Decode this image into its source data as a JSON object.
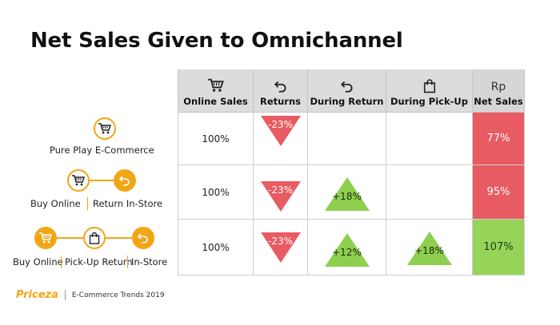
{
  "title": "Net Sales Given to Omnichannel",
  "table": {
    "headers": {
      "online_sales": "Online Sales",
      "returns": "Returns",
      "during_return": "During Return",
      "during_pickup": "During Pick-Up",
      "net_sales_symbol": "Rp",
      "net_sales": "Net Sales"
    },
    "rows": [
      {
        "online_sales": "100%",
        "returns": "-23%",
        "during_return": "",
        "during_pickup": "",
        "net_sales": "77%"
      },
      {
        "online_sales": "100%",
        "returns": "-23%",
        "during_return": "+18%",
        "during_pickup": "",
        "net_sales": "95%"
      },
      {
        "online_sales": "100%",
        "returns": "-23%",
        "during_return": "+12%",
        "during_pickup": "+18%",
        "net_sales": "107%"
      }
    ]
  },
  "channels": {
    "pure_play": "Pure Play E-Commerce",
    "row2_buy": "Buy Online",
    "row2_return": "Return In-Store",
    "row3_buy": "Buy Online",
    "row3_pickup": "Pick-Up Return",
    "row3_instore": "In-Store"
  },
  "footer": {
    "brand": "Priceza",
    "text": "E-Commerce Trends 2019"
  },
  "colors": {
    "accent": "#f2a516",
    "negative": "#e85b62",
    "positive": "#8fcf4f",
    "header_bg": "#dcdcdc"
  },
  "icons": [
    "cart-icon",
    "return-arrow-icon",
    "shopping-bag-icon"
  ]
}
